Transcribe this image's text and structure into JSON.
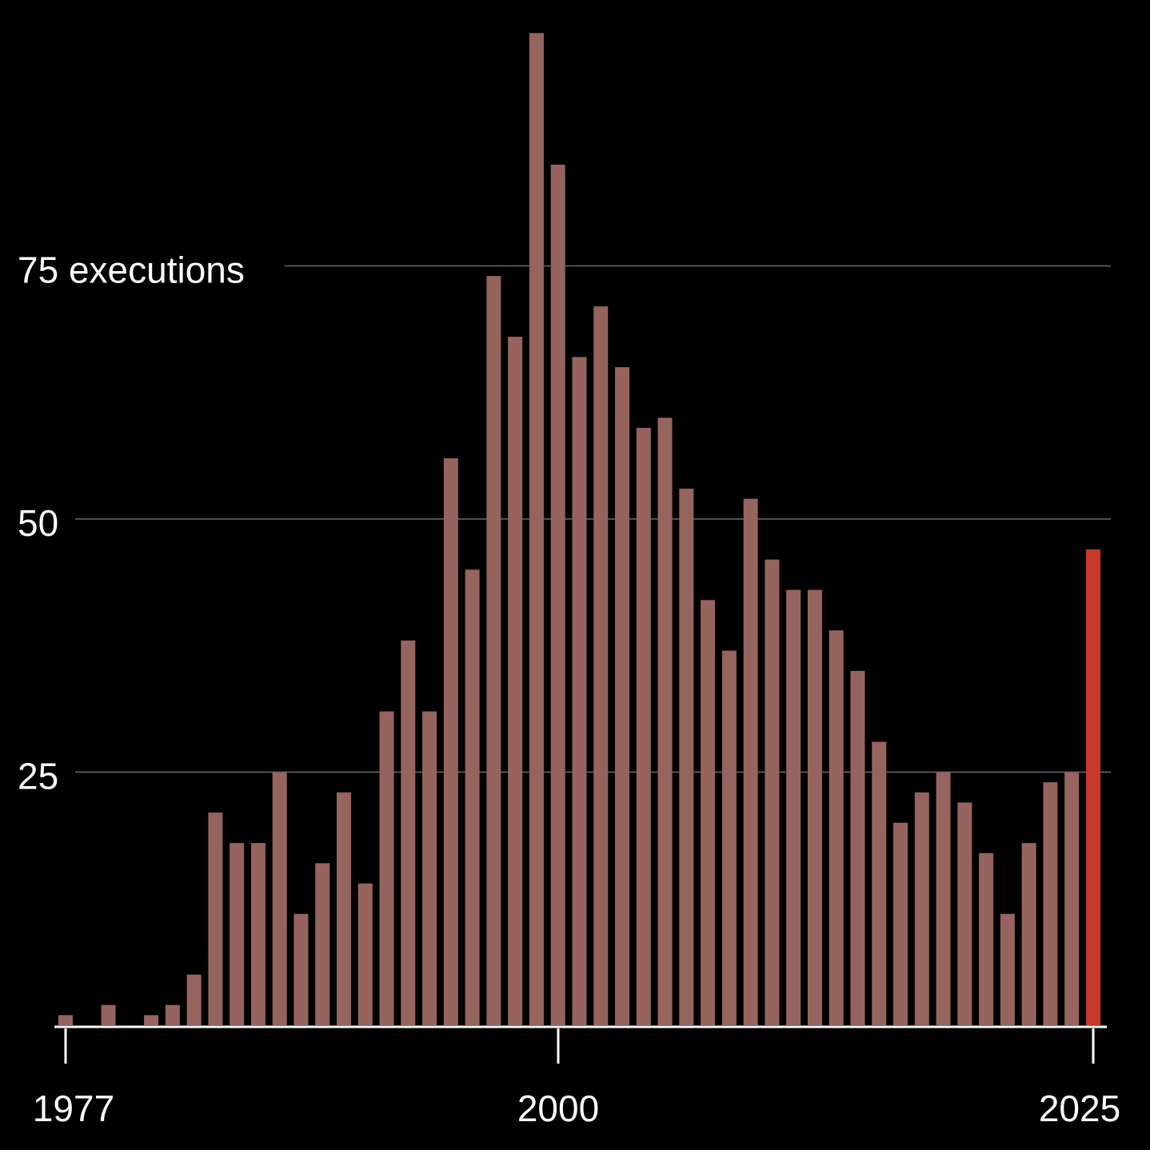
{
  "chart_data": {
    "type": "bar",
    "title": "",
    "xlabel": "",
    "ylabel": "executions",
    "ylim": [
      0,
      100
    ],
    "y_gridlines": [
      25,
      50,
      75
    ],
    "y_tick_labels": [
      "25",
      "50",
      "75 executions"
    ],
    "x_tick_labels": [
      "1977",
      "2000",
      "2025"
    ],
    "years": [
      1977,
      1978,
      1979,
      1980,
      1981,
      1982,
      1983,
      1984,
      1985,
      1986,
      1987,
      1988,
      1989,
      1990,
      1991,
      1992,
      1993,
      1994,
      1995,
      1996,
      1997,
      1998,
      1999,
      2000,
      2001,
      2002,
      2003,
      2004,
      2005,
      2006,
      2007,
      2008,
      2009,
      2010,
      2011,
      2012,
      2013,
      2014,
      2015,
      2016,
      2017,
      2018,
      2019,
      2020,
      2021,
      2022,
      2023,
      2024,
      2025
    ],
    "values": [
      1,
      0,
      2,
      0,
      1,
      2,
      5,
      21,
      18,
      18,
      25,
      11,
      16,
      23,
      14,
      31,
      38,
      31,
      56,
      45,
      74,
      68,
      98,
      85,
      66,
      71,
      65,
      59,
      60,
      53,
      42,
      37,
      52,
      46,
      43,
      43,
      39,
      35,
      28,
      20,
      23,
      25,
      22,
      17,
      11,
      18,
      24,
      25,
      47
    ],
    "colors": {
      "bar": "#96645e",
      "highlight": "#c8392b",
      "highlight_year": 2025,
      "background": "#000000",
      "gridline": "#6a6a6a",
      "text": "#ffffff"
    }
  }
}
